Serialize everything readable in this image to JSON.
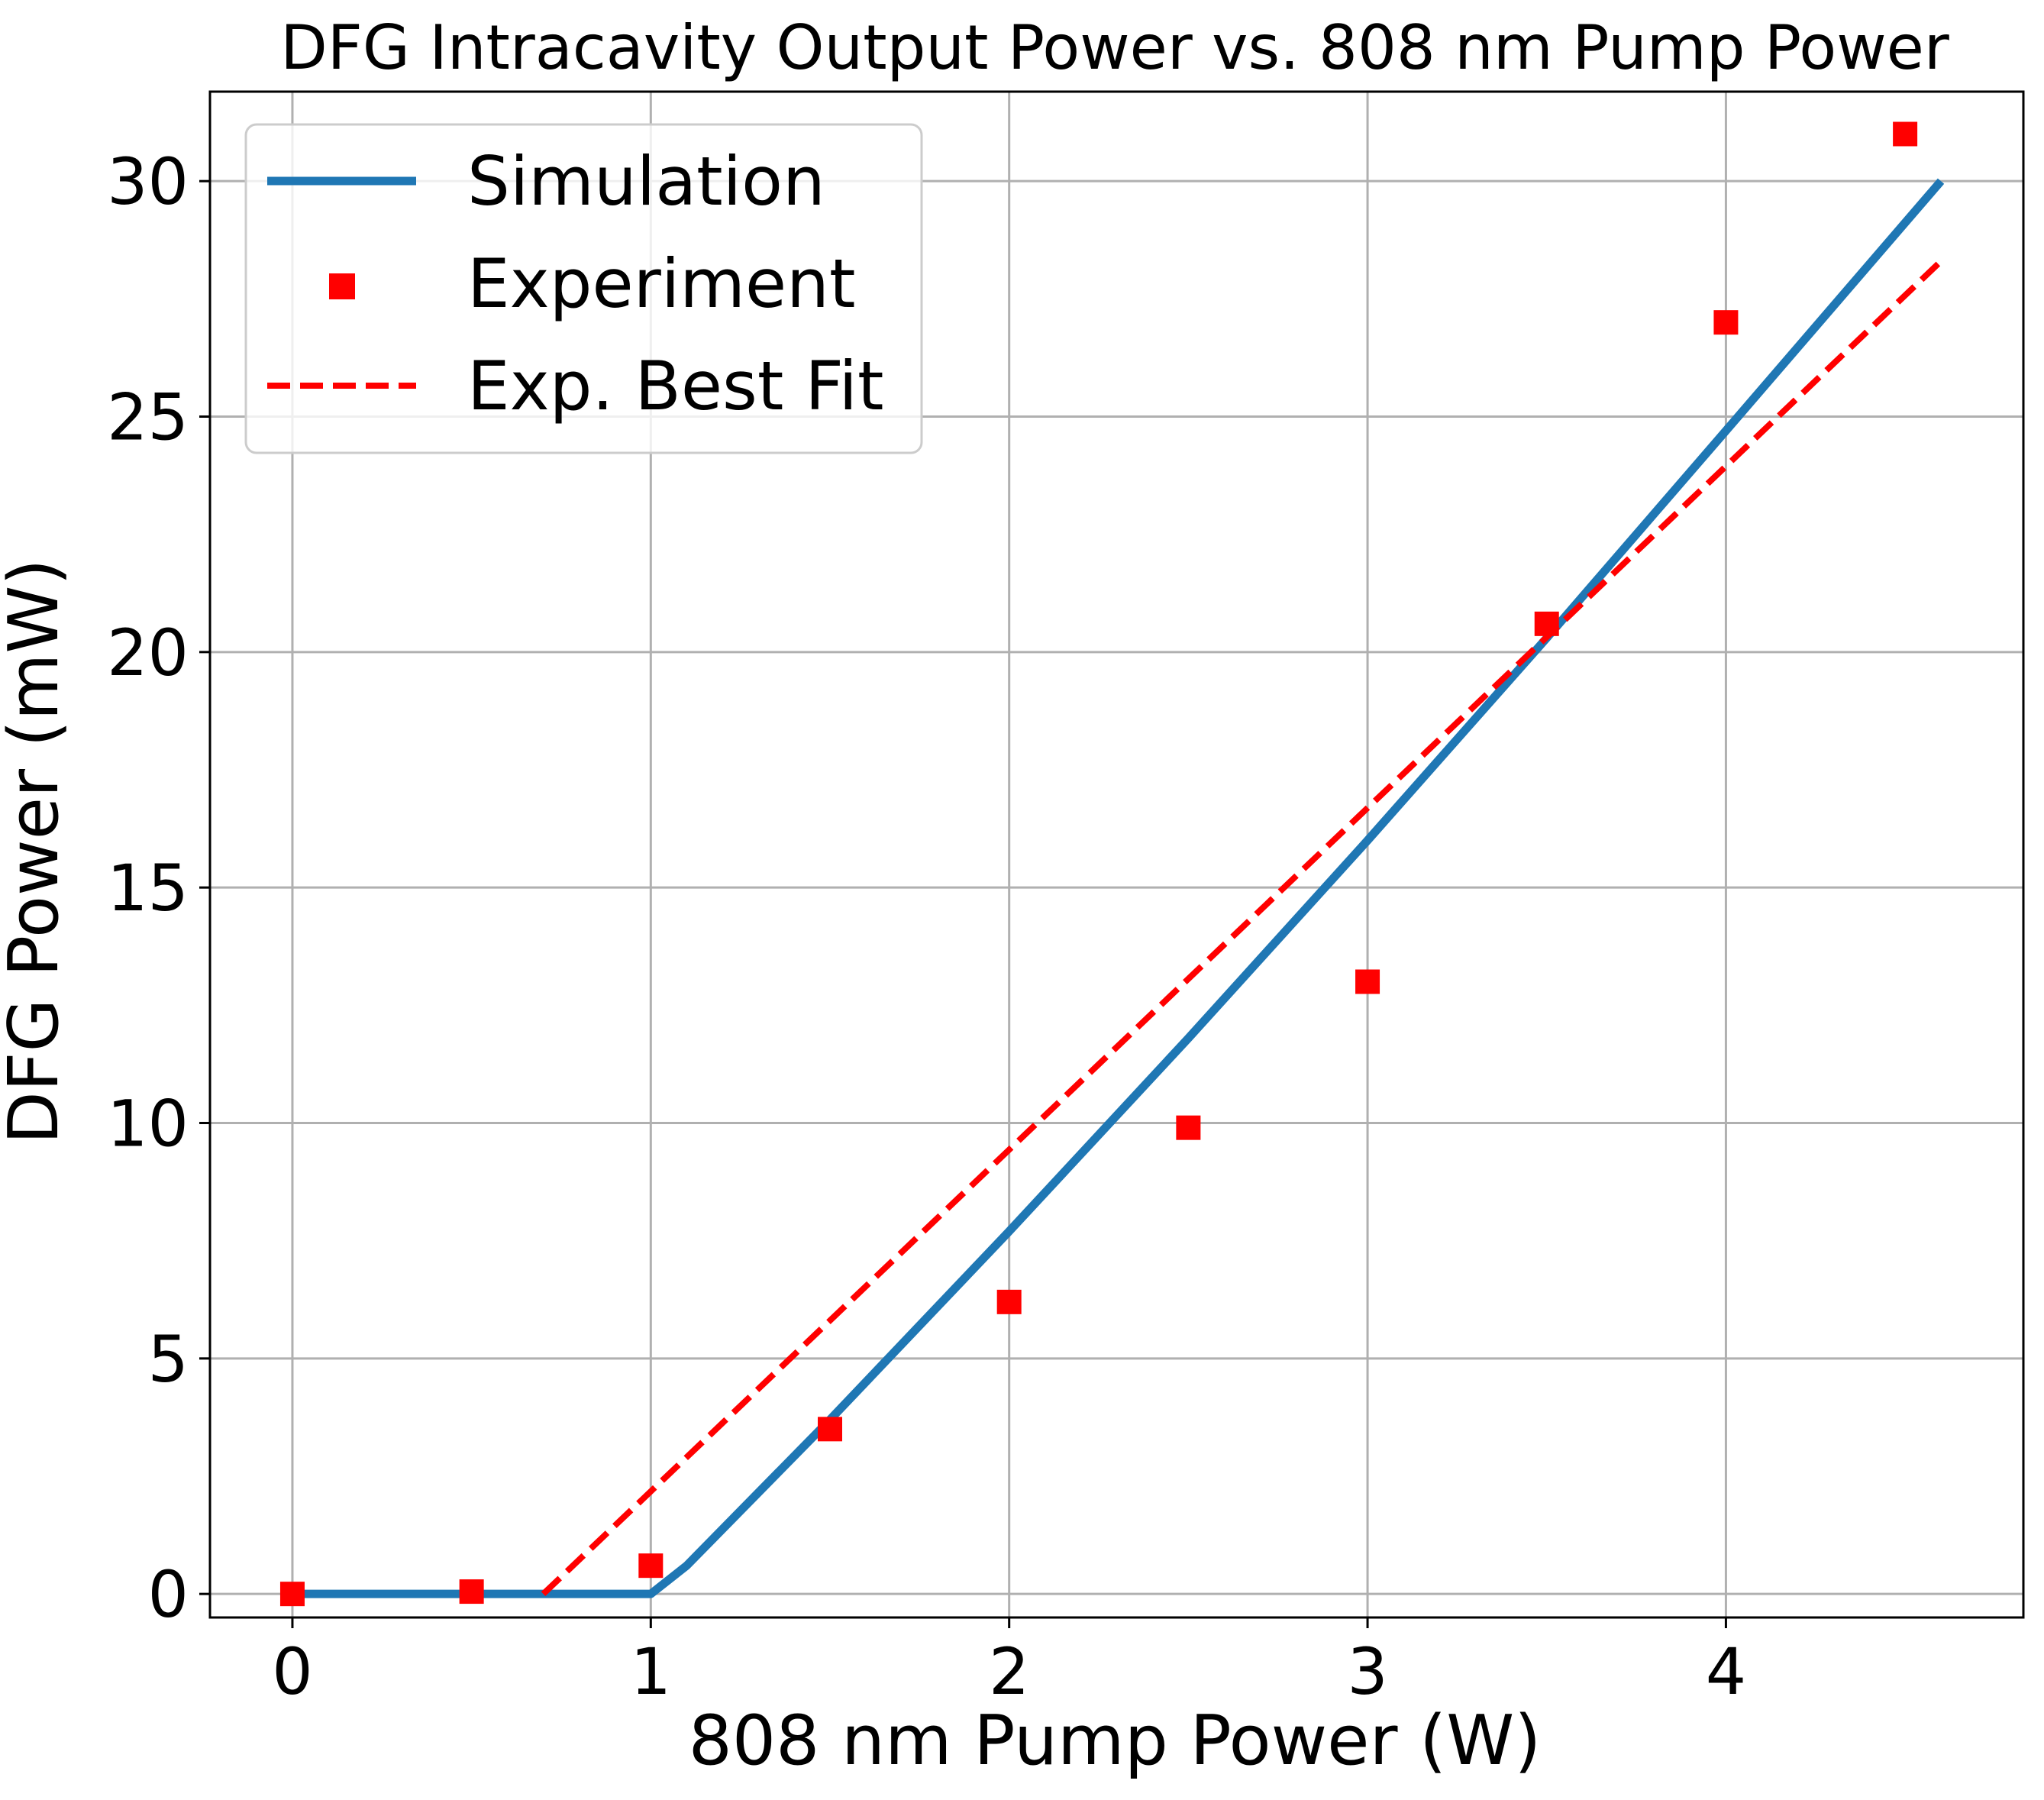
{
  "chart_data": {
    "type": "line",
    "title": "DFG Intracavity Output Power vs. 808 nm Pump Power",
    "xlabel": "808 nm Pump Power (W)",
    "ylabel": "DFG Power (mW)",
    "xlim": [
      -0.23,
      4.83
    ],
    "ylim": [
      -0.5,
      31.9
    ],
    "xticks": [
      0,
      1,
      2,
      3,
      4
    ],
    "yticks": [
      0,
      5,
      10,
      15,
      20,
      25,
      30
    ],
    "grid": true,
    "legend_position": "top-left",
    "series": [
      {
        "name": "Simulation",
        "kind": "line",
        "color": "#1f77b4",
        "x": [
          0,
          0.5,
          1.0,
          1.1,
          1.5,
          2.0,
          2.5,
          3.0,
          3.5,
          4.0,
          4.6
        ],
        "y": [
          0,
          0,
          0,
          0.6,
          3.7,
          7.7,
          11.8,
          16.0,
          20.3,
          24.7,
          30.0
        ]
      },
      {
        "name": "Experiment",
        "kind": "scatter",
        "marker": "square",
        "color": "#ff0000",
        "x": [
          0,
          0.5,
          1.0,
          1.5,
          2.0,
          2.5,
          3.0,
          3.5,
          4.0,
          4.5
        ],
        "y": [
          0,
          0.05,
          0.6,
          3.5,
          6.2,
          9.9,
          13.0,
          20.6,
          27.0,
          31.0
        ]
      },
      {
        "name": "Exp. Best Fit",
        "kind": "dashed-line",
        "color": "#ff0000",
        "x": [
          0.7,
          4.6
        ],
        "y": [
          0,
          28.3
        ]
      }
    ]
  }
}
